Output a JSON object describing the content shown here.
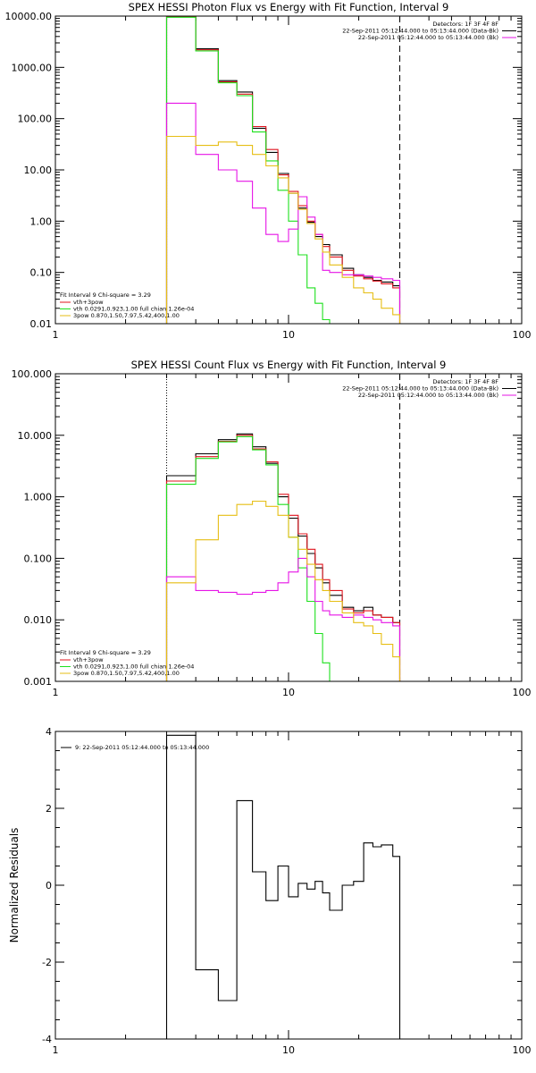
{
  "chart_data": [
    {
      "type": "line",
      "title": "SPEX HESSI Photon Flux vs Energy with Fit Function, Interval 9",
      "xlabel": "",
      "ylabel": "",
      "xscale": "log",
      "yscale": "log",
      "xlim": [
        1,
        100
      ],
      "ylim": [
        0.01,
        10000
      ],
      "x_tick_labels": [
        "1",
        "10",
        "100"
      ],
      "y_tick_labels": [
        "0.01",
        "0.10",
        "1.00",
        "10.00",
        "100.00",
        "1000.00",
        "10000.00"
      ],
      "header_lines": [
        "Detectors: 1F 3F 4F 8F",
        "22-Sep-2011 05:12:44.000 to 05:13:44.000 (Data-Bk)",
        "22-Sep-2011 05:12:44.000 to 05:13:44.000 (Bk)"
      ],
      "legend_title": "Fit Interval 9   Chi-square = 3.29",
      "legend_entries": [
        "vth+3pow",
        "vth 0.0291,0.923,1.00  full chian 1.26e-04",
        "3pow 0.870,1.50,7.97,5.42,400,1.00"
      ],
      "series": [
        {
          "key": "data",
          "color": "#000000",
          "x": [
            3,
            4,
            5,
            6,
            7,
            8,
            9,
            10,
            11,
            12,
            13,
            14,
            15,
            17,
            19,
            21,
            23,
            25,
            28,
            30
          ],
          "y": [
            10000,
            2300,
            550,
            330,
            65,
            22,
            8.5,
            3.5,
            1.8,
            0.95,
            0.5,
            0.35,
            0.22,
            0.12,
            0.09,
            0.08,
            0.07,
            0.065,
            0.055,
            0.01
          ]
        },
        {
          "key": "fit",
          "color": "#e0141e",
          "x": [
            3,
            4,
            5,
            6,
            7,
            8,
            9,
            10,
            11,
            12,
            13,
            14,
            15,
            17,
            19,
            21,
            23,
            25,
            28,
            30
          ],
          "y": [
            9800,
            2200,
            520,
            300,
            70,
            25,
            8.0,
            3.8,
            2.0,
            1.0,
            0.55,
            0.32,
            0.2,
            0.11,
            0.085,
            0.075,
            0.068,
            0.06,
            0.05,
            0.01
          ]
        },
        {
          "key": "vth",
          "color": "#1ee01e",
          "x": [
            3,
            4,
            5,
            6,
            7,
            8,
            9,
            10,
            11,
            12,
            13,
            14,
            15,
            17
          ],
          "y": [
            9500,
            2100,
            500,
            280,
            55,
            15,
            4.0,
            1.0,
            0.22,
            0.05,
            0.025,
            0.012,
            0.01,
            0.01
          ]
        },
        {
          "key": "3pow_magenta",
          "color": "#e614e6",
          "x": [
            3,
            4,
            5,
            6,
            7,
            8,
            9,
            10,
            11,
            12,
            13,
            14,
            15,
            17,
            19,
            21,
            23,
            25,
            28,
            30
          ],
          "y": [
            200,
            20,
            10,
            6,
            1.8,
            0.55,
            0.4,
            0.7,
            3.0,
            1.2,
            0.55,
            0.11,
            0.1,
            0.09,
            0.09,
            0.085,
            0.08,
            0.075,
            0.07,
            0.01
          ]
        },
        {
          "key": "3pow_yellow",
          "color": "#e6be14",
          "x": [
            3,
            4,
            5,
            6,
            7,
            8,
            9,
            10,
            11,
            12,
            13,
            14,
            15,
            17,
            19,
            21,
            23,
            25,
            28,
            30
          ],
          "y": [
            45,
            30,
            35,
            30,
            20,
            12,
            7.0,
            3.5,
            1.7,
            0.9,
            0.45,
            0.25,
            0.14,
            0.08,
            0.05,
            0.04,
            0.03,
            0.02,
            0.015,
            0.01
          ]
        }
      ],
      "markers": [
        {
          "x": 3,
          "style": "dotted"
        },
        {
          "x": 30,
          "style": "dashed"
        }
      ]
    },
    {
      "type": "line",
      "title": "SPEX HESSI Count Flux vs Energy with Fit Function, Interval 9",
      "xlabel": "",
      "ylabel": "",
      "xscale": "log",
      "yscale": "log",
      "xlim": [
        1,
        100
      ],
      "ylim": [
        0.001,
        100
      ],
      "x_tick_labels": [
        "1",
        "10",
        "100"
      ],
      "y_tick_labels": [
        "0.001",
        "0.010",
        "0.100",
        "1.000",
        "10.000",
        "100.000"
      ],
      "header_lines": [
        "Detectors: 1F 3F 4F 8F",
        "22-Sep-2011 05:12:44.000 to 05:13:44.000 (Data-Bk)",
        "22-Sep-2011 05:12:44.000 to 05:13:44.000 (Bk)"
      ],
      "legend_title": "Fit Interval 9   Chi-square = 3.29",
      "legend_entries": [
        "vth+3pow",
        "vth 0.0291,0.923,1.00  full chian 1.26e-04",
        "3pow 0.870,1.50,7.97,5.42,400,1.00"
      ],
      "series": [
        {
          "key": "data",
          "color": "#000000",
          "x": [
            3,
            4,
            5,
            6,
            7,
            8,
            9,
            10,
            11,
            12,
            13,
            14,
            15,
            17,
            19,
            21,
            23,
            25,
            28,
            30
          ],
          "y": [
            2.2,
            5.0,
            8.5,
            10.5,
            6.5,
            3.5,
            1.0,
            0.45,
            0.23,
            0.12,
            0.07,
            0.04,
            0.025,
            0.016,
            0.014,
            0.016,
            0.012,
            0.011,
            0.009,
            0.001
          ]
        },
        {
          "key": "fit",
          "color": "#e0141e",
          "x": [
            3,
            4,
            5,
            6,
            7,
            8,
            9,
            10,
            11,
            12,
            13,
            14,
            15,
            17,
            19,
            21,
            23,
            25,
            28,
            30
          ],
          "y": [
            1.8,
            4.5,
            8.0,
            10.0,
            6.0,
            3.7,
            1.1,
            0.5,
            0.25,
            0.14,
            0.08,
            0.045,
            0.03,
            0.015,
            0.013,
            0.014,
            0.012,
            0.011,
            0.009,
            0.001
          ]
        },
        {
          "key": "vth",
          "color": "#1ee01e",
          "x": [
            3,
            4,
            5,
            6,
            7,
            8,
            9,
            10,
            11,
            12,
            13,
            14,
            15
          ],
          "y": [
            1.6,
            4.2,
            7.8,
            9.5,
            5.8,
            3.3,
            0.75,
            0.22,
            0.07,
            0.02,
            0.006,
            0.002,
            0.001
          ]
        },
        {
          "key": "3pow_magenta",
          "color": "#e614e6",
          "x": [
            3,
            4,
            5,
            6,
            7,
            8,
            9,
            10,
            11,
            12,
            13,
            14,
            15,
            17,
            19,
            21,
            23,
            25,
            28,
            30
          ],
          "y": [
            0.05,
            0.03,
            0.028,
            0.026,
            0.028,
            0.03,
            0.04,
            0.06,
            0.1,
            0.05,
            0.02,
            0.014,
            0.012,
            0.011,
            0.012,
            0.011,
            0.01,
            0.009,
            0.008,
            0.001
          ]
        },
        {
          "key": "3pow_yellow",
          "color": "#e6be14",
          "x": [
            3,
            4,
            5,
            6,
            7,
            8,
            9,
            10,
            11,
            12,
            13,
            14,
            15,
            17,
            19,
            21,
            23,
            25,
            28,
            30
          ],
          "y": [
            0.04,
            0.2,
            0.5,
            0.75,
            0.85,
            0.7,
            0.5,
            0.22,
            0.14,
            0.08,
            0.045,
            0.03,
            0.02,
            0.013,
            0.009,
            0.008,
            0.006,
            0.004,
            0.0025,
            0.001
          ]
        }
      ],
      "markers": [
        {
          "x": 3,
          "style": "dotted"
        },
        {
          "x": 30,
          "style": "dashed"
        }
      ]
    },
    {
      "type": "line",
      "title": "",
      "xlabel": "",
      "ylabel": "Normalized Residuals",
      "xscale": "log",
      "yscale": "linear",
      "xlim": [
        1,
        100
      ],
      "ylim": [
        -4,
        4
      ],
      "x_tick_labels": [
        "1",
        "10",
        "100"
      ],
      "y_tick_labels": [
        "-4",
        "-2",
        "0",
        "2",
        "4"
      ],
      "legend_entries": [
        "9: 22-Sep-2011 05:12:44.000 to 05:13:44.000"
      ],
      "series": [
        {
          "key": "residuals",
          "color": "#000000",
          "x": [
            3,
            4,
            5,
            6,
            7,
            8,
            9,
            10,
            11,
            12,
            13,
            14,
            15,
            17,
            19,
            21,
            23,
            25,
            28,
            30
          ],
          "y": [
            3.9,
            -2.2,
            -3.0,
            2.2,
            0.35,
            -0.4,
            0.5,
            -0.3,
            0.05,
            -0.1,
            0.1,
            -0.2,
            -0.65,
            0.0,
            0.1,
            1.1,
            1.0,
            1.05,
            0.75,
            -4.0
          ]
        }
      ]
    }
  ]
}
